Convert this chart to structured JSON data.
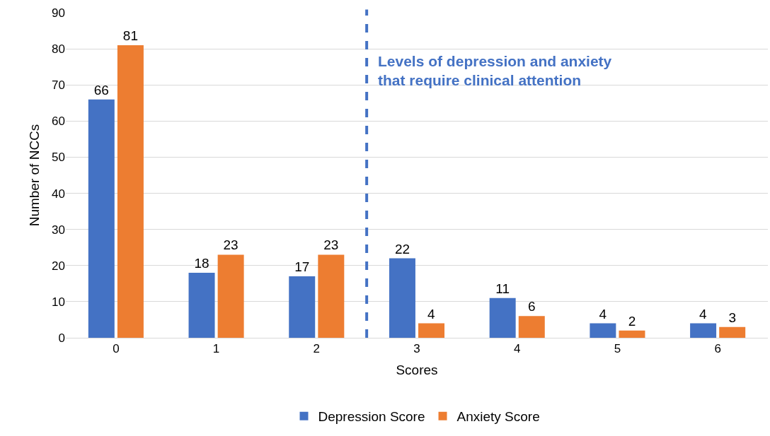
{
  "chart_data": {
    "type": "bar",
    "xlabel": "Scores",
    "ylabel": "Number of NCCs",
    "x": [
      0,
      1,
      2,
      3,
      4,
      5,
      6
    ],
    "xlim": [
      -0.5,
      6.5
    ],
    "xticks": [
      0,
      1,
      2,
      3,
      4,
      5,
      6
    ],
    "ylim": [
      0,
      90
    ],
    "yticks": [
      0,
      10,
      20,
      30,
      40,
      50,
      60,
      70,
      80,
      90
    ],
    "series": [
      {
        "name": "Depression Score",
        "color": "#4472c4",
        "values": [
          66,
          18,
          17,
          22,
          11,
          4,
          4
        ]
      },
      {
        "name": "Anxiety Score",
        "color": "#ed7d31",
        "values": [
          81,
          23,
          23,
          4,
          6,
          2,
          3
        ]
      }
    ],
    "ref_lines": [
      {
        "axis": "x",
        "value": 2.5,
        "label": "Levels of depression and anxiety that require clinical attention",
        "color": "#4472c4",
        "line_style": "dashed"
      }
    ],
    "data_labels": true,
    "grid": "y",
    "legend": "bottom"
  }
}
